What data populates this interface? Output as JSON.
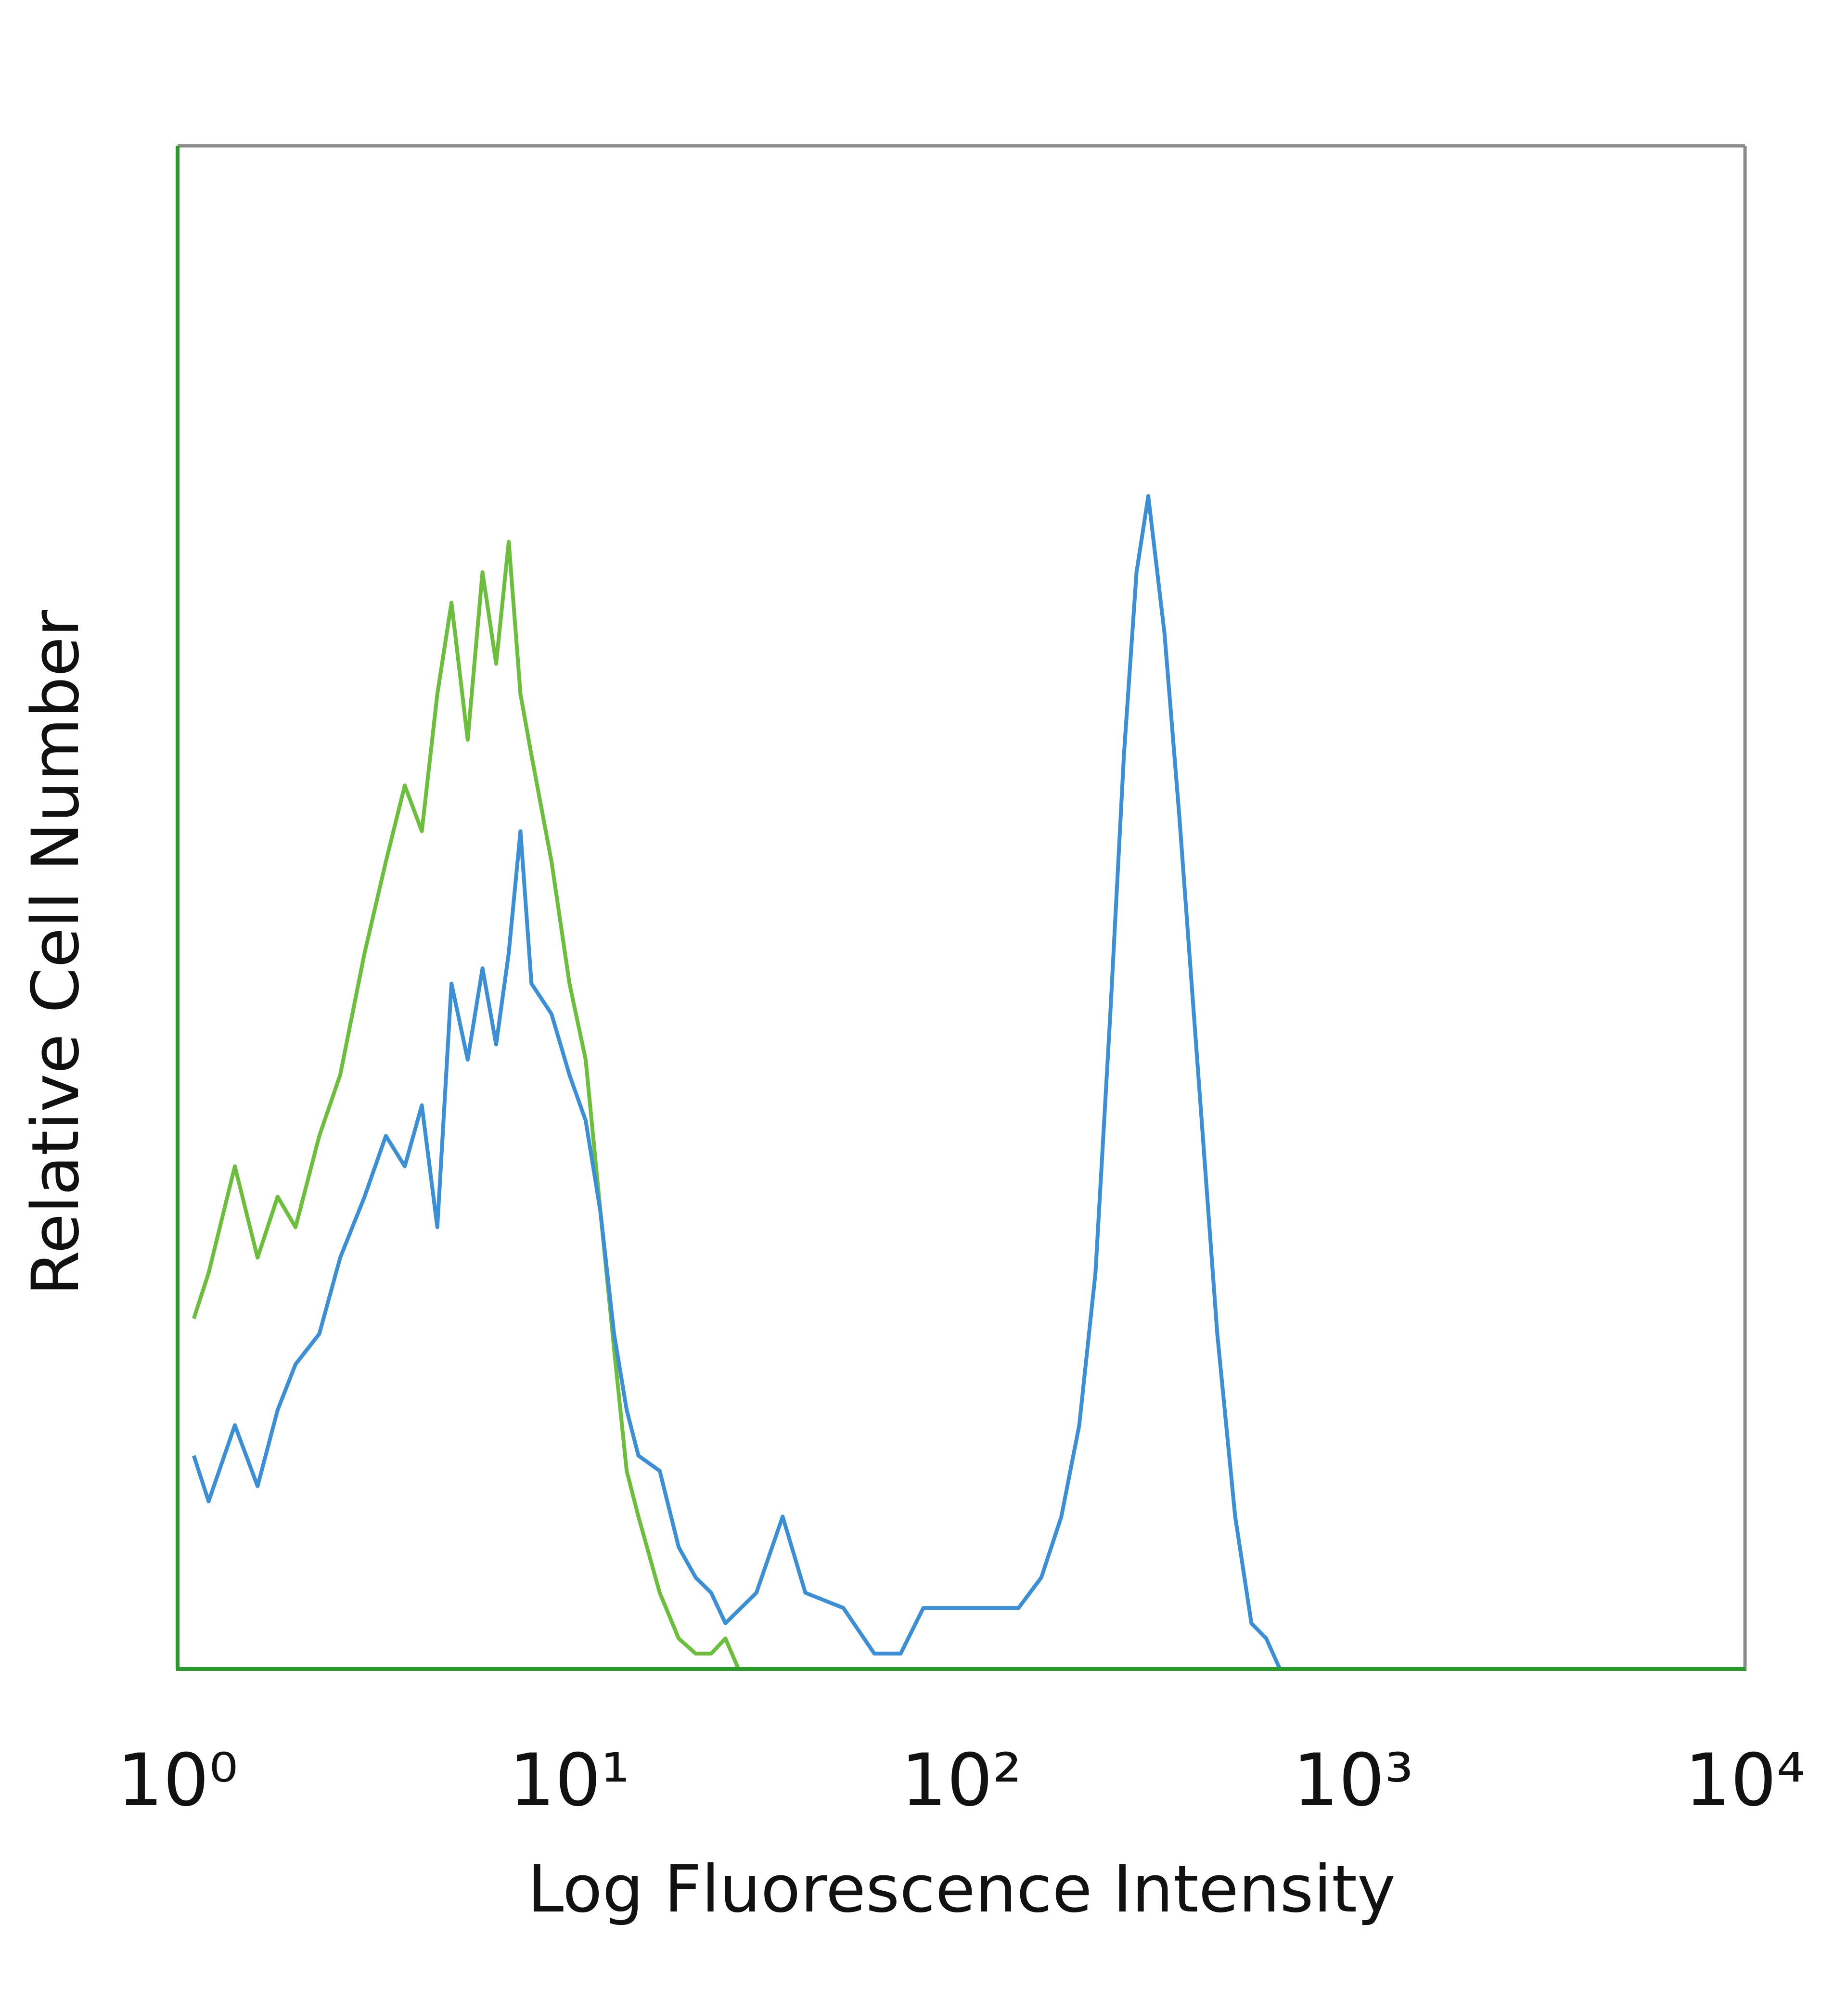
{
  "chart_data": {
    "type": "line",
    "x_label": "Log Fluorescence Intensity",
    "y_label": "Relative Cell Number",
    "xscale": "log",
    "xlim": [
      1,
      10000
    ],
    "xticks": [
      {
        "value": 1,
        "label": "10⁰"
      },
      {
        "value": 10,
        "label": "10¹"
      },
      {
        "value": 100,
        "label": "10²"
      },
      {
        "value": 1000,
        "label": "10³"
      },
      {
        "value": 10000,
        "label": "10⁴"
      }
    ],
    "ylim": [
      0,
      100
    ],
    "series": [
      {
        "color": "#6cbf3c",
        "x": [
          1.1,
          1.2,
          1.4,
          1.6,
          1.8,
          2.0,
          2.3,
          2.6,
          3.0,
          3.4,
          3.8,
          4.2,
          4.6,
          5.0,
          5.5,
          6.0,
          6.5,
          7.0,
          7.5,
          8.0,
          9.0,
          10,
          11,
          12,
          13,
          14,
          15,
          17,
          19,
          21,
          23,
          25,
          27
        ],
        "values": [
          23,
          26,
          33,
          27,
          31,
          29,
          35,
          39,
          47,
          53,
          58,
          55,
          64,
          70,
          61,
          72,
          66,
          74,
          64,
          60,
          53,
          45,
          40,
          30,
          21,
          13,
          10,
          5,
          2,
          1,
          1,
          2,
          0
        ]
      },
      {
        "color": "#3a8fd6",
        "x": [
          1.1,
          1.2,
          1.4,
          1.6,
          1.8,
          2.0,
          2.3,
          2.6,
          3.0,
          3.4,
          3.8,
          4.2,
          4.6,
          5.0,
          5.5,
          6.0,
          6.5,
          7.0,
          7.5,
          8.0,
          9.0,
          10,
          11,
          12,
          13,
          14,
          15,
          17,
          19,
          21,
          23,
          25,
          30,
          35,
          40,
          50,
          60,
          70,
          80,
          100,
          120,
          140,
          160,
          180,
          200,
          220,
          240,
          260,
          280,
          300,
          330,
          360,
          400,
          450,
          500,
          550,
          600,
          650
        ],
        "values": [
          14,
          11,
          16,
          12,
          17,
          20,
          22,
          27,
          31,
          35,
          33,
          37,
          29,
          45,
          40,
          46,
          41,
          47,
          55,
          45,
          43,
          39,
          36,
          30,
          22,
          17,
          14,
          13,
          8,
          6,
          5,
          3,
          5,
          10,
          5,
          4,
          1,
          1,
          4,
          4,
          4,
          4,
          6,
          10,
          16,
          26,
          43,
          60,
          72,
          77,
          68,
          56,
          40,
          22,
          10,
          3,
          2,
          0
        ]
      }
    ]
  }
}
